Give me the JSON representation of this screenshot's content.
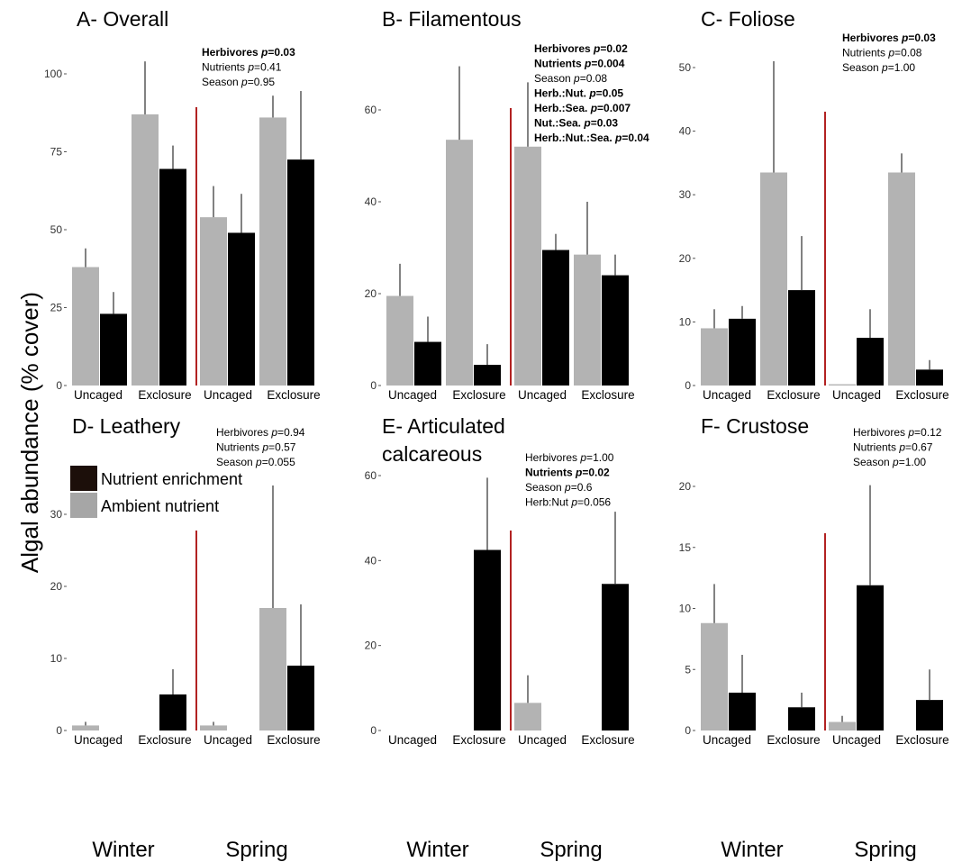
{
  "figure": {
    "ylabel": "Algal abundance (% cover)",
    "legend": [
      {
        "label": "Nutrient enrichment",
        "color": "#1c0f0a"
      },
      {
        "label": "Ambient nutrient",
        "color": "#a6a6a6"
      }
    ],
    "seasons": [
      "Winter",
      "Spring"
    ],
    "treatments": [
      "Uncaged",
      "Exclosure"
    ],
    "colors": {
      "ambient": "#b3b3b3",
      "enriched": "#000000",
      "divider": "#b22222"
    }
  },
  "chart_data": [
    {
      "type": "bar",
      "title": "A- Overall",
      "ylim": [
        0,
        105
      ],
      "ticks": [
        0,
        25,
        50,
        75,
        100
      ],
      "categories": [
        "Uncaged",
        "Exclosure",
        "Uncaged",
        "Exclosure"
      ],
      "series": [
        {
          "name": "Ambient nutrient",
          "values": [
            38,
            87,
            54,
            86
          ],
          "err": [
            6,
            17,
            10,
            7
          ]
        },
        {
          "name": "Nutrient enrichment",
          "values": [
            23,
            69.5,
            49,
            72.5
          ],
          "err": [
            7,
            7.5,
            12.5,
            22
          ]
        }
      ],
      "stats": [
        {
          "name": "Herbivores",
          "p": "0.03",
          "bold": true
        },
        {
          "name": "Nutrients",
          "p": "0.41",
          "bold": false
        },
        {
          "name": "Season",
          "p": "0.95",
          "bold": false
        }
      ]
    },
    {
      "type": "bar",
      "title": "B- Filamentous",
      "ylim": [
        0,
        70
      ],
      "ticks": [
        0,
        20,
        40,
        60
      ],
      "categories": [
        "Uncaged",
        "Exclosure",
        "Uncaged",
        "Exclosure"
      ],
      "series": [
        {
          "name": "Ambient nutrient",
          "values": [
            19.5,
            53.5,
            52,
            28.5
          ],
          "err": [
            7,
            16,
            14,
            11.5
          ]
        },
        {
          "name": "Nutrient enrichment",
          "values": [
            9.5,
            4.5,
            29.5,
            24
          ],
          "err": [
            5.5,
            4.5,
            3.5,
            4.5
          ]
        }
      ],
      "stats": [
        {
          "name": "Herbivores",
          "p": "0.02",
          "bold": true
        },
        {
          "name": "Nutrients",
          "p": "0.004",
          "bold": true
        },
        {
          "name": "Season",
          "p": "0.08",
          "bold": false
        },
        {
          "name": "Herb.:Nut.",
          "p": "0.05",
          "bold": true
        },
        {
          "name": "Herb.:Sea.",
          "p": "0.007",
          "bold": true
        },
        {
          "name": "Nut.:Sea.",
          "p": "0.03",
          "bold": true
        },
        {
          "name": "Herb.:Nut.:Sea.",
          "p": "0.04",
          "bold": true
        }
      ]
    },
    {
      "type": "bar",
      "title": "C- Foliose",
      "ylim": [
        0,
        52
      ],
      "ticks": [
        0,
        10,
        20,
        30,
        40,
        50
      ],
      "categories": [
        "Uncaged",
        "Exclosure",
        "Uncaged",
        "Exclosure"
      ],
      "series": [
        {
          "name": "Ambient nutrient",
          "values": [
            9,
            33.5,
            0.2,
            33.5
          ],
          "err": [
            3,
            17.5,
            0,
            3
          ]
        },
        {
          "name": "Nutrient enrichment",
          "values": [
            10.5,
            15,
            7.5,
            2.5
          ],
          "err": [
            2,
            8.5,
            4.5,
            1.5
          ]
        }
      ],
      "stats": [
        {
          "name": "Herbivores",
          "p": "0.03",
          "bold": true
        },
        {
          "name": "Nutrients",
          "p": "0.08",
          "bold": false
        },
        {
          "name": "Season",
          "p": "1.00",
          "bold": false
        }
      ]
    },
    {
      "type": "bar",
      "title": "D- Leathery",
      "ylim": [
        0,
        36
      ],
      "ticks": [
        0,
        10,
        20,
        30
      ],
      "categories": [
        "Uncaged",
        "Exclosure",
        "Uncaged",
        "Exclosure"
      ],
      "series": [
        {
          "name": "Ambient nutrient",
          "values": [
            0.7,
            0,
            0.7,
            17
          ],
          "err": [
            0.5,
            0,
            0.5,
            17
          ]
        },
        {
          "name": "Nutrient enrichment",
          "values": [
            0,
            5,
            0,
            9
          ],
          "err": [
            0,
            3.5,
            0,
            8.5
          ]
        }
      ],
      "stats": [
        {
          "name": "Herbivores",
          "p": "0.94",
          "bold": false
        },
        {
          "name": "Nutrients",
          "p": "0.57",
          "bold": false
        },
        {
          "name": "Season",
          "p": "0.055",
          "bold": false
        }
      ]
    },
    {
      "type": "bar",
      "title": "E- Articulated calcareous",
      "ylim": [
        0,
        62
      ],
      "ticks": [
        0,
        20,
        40,
        60
      ],
      "categories": [
        "Uncaged",
        "Exclosure",
        "Uncaged",
        "Exclosure"
      ],
      "series": [
        {
          "name": "Ambient nutrient",
          "values": [
            0,
            0,
            6.5,
            0
          ],
          "err": [
            0,
            0,
            6.5,
            0
          ]
        },
        {
          "name": "Nutrient enrichment",
          "values": [
            0,
            42.5,
            0,
            34.5
          ],
          "err": [
            0,
            17,
            0,
            17
          ]
        }
      ],
      "stats": [
        {
          "name": "Herbivores",
          "p": "1.00",
          "bold": false
        },
        {
          "name": "Nutrients",
          "p": "0.02",
          "bold": true
        },
        {
          "name": "Season",
          "p": "0.6",
          "bold": false
        },
        {
          "name": "Herb:Nut",
          "p": "0.056",
          "bold": false
        }
      ]
    },
    {
      "type": "bar",
      "title": "F- Crustose",
      "ylim": [
        0,
        22
      ],
      "ticks": [
        0,
        5,
        10,
        15,
        20
      ],
      "categories": [
        "Uncaged",
        "Exclosure",
        "Uncaged",
        "Exclosure"
      ],
      "series": [
        {
          "name": "Ambient nutrient",
          "values": [
            8.8,
            0,
            0.7,
            0
          ],
          "err": [
            3.2,
            0,
            0.5,
            0
          ]
        },
        {
          "name": "Nutrient enrichment",
          "values": [
            3.1,
            1.9,
            11.9,
            2.5
          ],
          "err": [
            3.1,
            1.2,
            8.2,
            2.5
          ]
        }
      ],
      "stats": [
        {
          "name": "Herbivores",
          "p": "0.12",
          "bold": false
        },
        {
          "name": "Nutrients",
          "p": "0.67",
          "bold": false
        },
        {
          "name": "Season",
          "p": "1.00",
          "bold": false
        }
      ]
    }
  ]
}
